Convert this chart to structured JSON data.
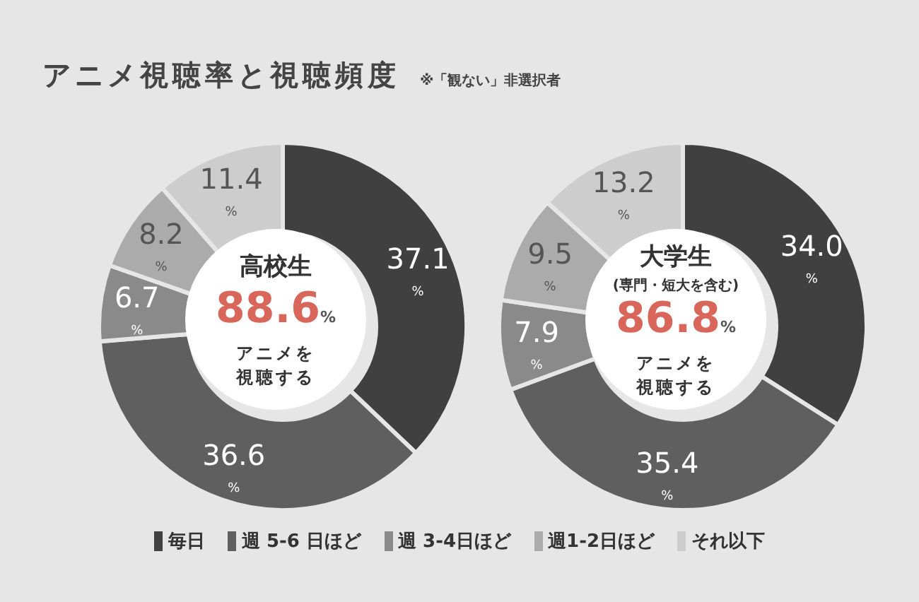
{
  "chart_data": [
    {
      "type": "donut",
      "title": "アニメ視聴率と視聴頻度",
      "subtitle": "※「観ない」非選択者",
      "categories": [
        "毎日",
        "週 5-6 日ほど",
        "週 3-4日ほど",
        "週1-2日ほど",
        "それ以下"
      ],
      "values": [
        37.1,
        36.6,
        6.7,
        8.2,
        11.4
      ],
      "colors": [
        "#404040",
        "#5f5f5f",
        "#8a8a8a",
        "#ababab",
        "#cdcdcd"
      ],
      "value_labels": [
        "37.1$_{%}$",
        "36.6$_{%}$",
        "6.7$_{%}$",
        "8.2$_{%}$",
        "11.4$_{%}$"
      ],
      "annotations": [
        "高校生",
        "88.6%",
        "アニメを視聴する"
      ],
      "legend": "bottom"
    },
    {
      "type": "donut",
      "categories": [
        null,
        null,
        null,
        null,
        null
      ],
      "values": [
        34.0,
        35.4,
        7.9,
        9.5,
        13.2
      ],
      "colors": [
        "#404040",
        "#5f5f5f",
        "#8a8a8a",
        "#ababab",
        "#cdcdcd"
      ],
      "value_labels": [
        "34.0$_{%}$",
        "35.4$_{%}$",
        "7.9$_{%}$",
        "9.5$_{%}$",
        "13.2$_{%}$"
      ],
      "annotations": [
        "大学生",
        "(専門・短大を含む)",
        "86.8%",
        "アニメを視聴する"
      ]
    }
  ]
}
